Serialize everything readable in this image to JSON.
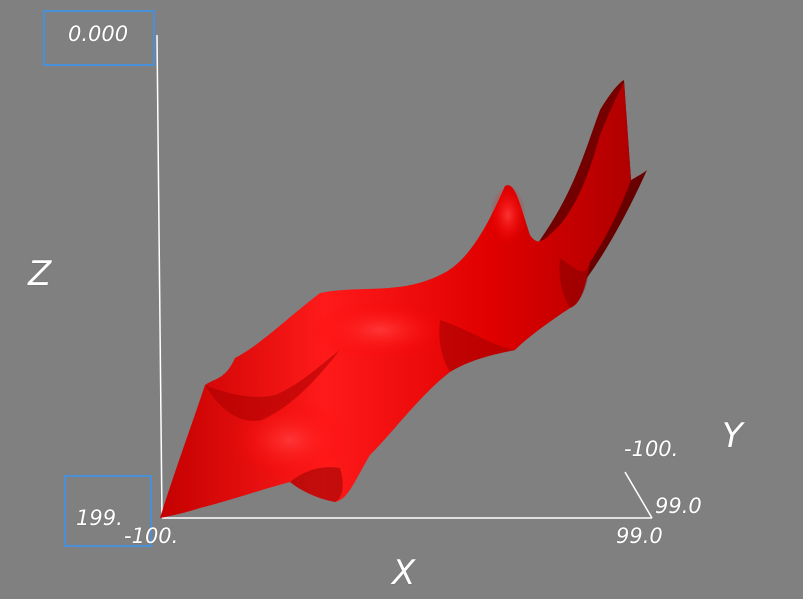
{
  "axes": {
    "x": {
      "title": "X",
      "min_label": "-100.",
      "max_label": "99.0"
    },
    "y": {
      "title": "Y",
      "min_label": "-100.",
      "max_label": "99.0"
    },
    "z": {
      "title": "Z",
      "top_label": "0.000",
      "bottom_label": "199."
    }
  },
  "colors": {
    "background": "#808080",
    "surface": "#e00000",
    "axis_lines": "#ffffff",
    "selection_box": "#4a90d9"
  }
}
